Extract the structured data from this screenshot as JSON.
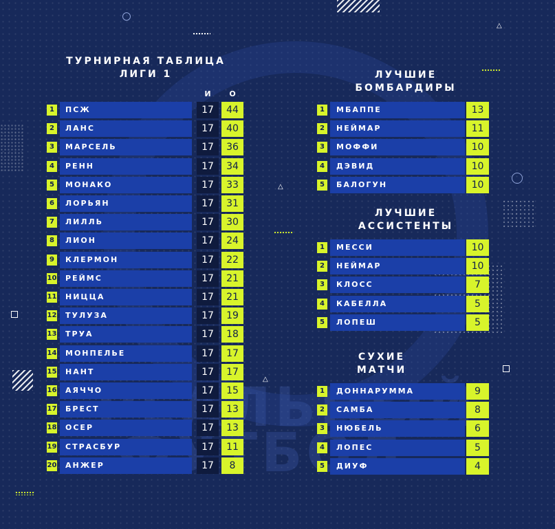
{
  "standings": {
    "title_line1": "ТУРНИРНАЯ ТАБЛИЦА",
    "title_line2": "ЛИГИ 1",
    "col_games": "И",
    "col_points": "О",
    "rows": [
      {
        "rank": "1",
        "team": "ПСЖ",
        "games": "17",
        "points": "44"
      },
      {
        "rank": "2",
        "team": "ЛАНС",
        "games": "17",
        "points": "40"
      },
      {
        "rank": "3",
        "team": "МАРСЕЛЬ",
        "games": "17",
        "points": "36"
      },
      {
        "rank": "4",
        "team": "РЕНН",
        "games": "17",
        "points": "34"
      },
      {
        "rank": "5",
        "team": "МОНАКО",
        "games": "17",
        "points": "33"
      },
      {
        "rank": "6",
        "team": "ЛОРЬЯН",
        "games": "17",
        "points": "31"
      },
      {
        "rank": "7",
        "team": "ЛИЛЛЬ",
        "games": "17",
        "points": "30"
      },
      {
        "rank": "8",
        "team": "ЛИОН",
        "games": "17",
        "points": "24"
      },
      {
        "rank": "9",
        "team": "КЛЕРМОН",
        "games": "17",
        "points": "22"
      },
      {
        "rank": "10",
        "team": "РЕЙМС",
        "games": "17",
        "points": "21"
      },
      {
        "rank": "11",
        "team": "НИЦЦА",
        "games": "17",
        "points": "21"
      },
      {
        "rank": "12",
        "team": "ТУЛУЗА",
        "games": "17",
        "points": "19"
      },
      {
        "rank": "13",
        "team": "ТРУА",
        "games": "17",
        "points": "18"
      },
      {
        "rank": "14",
        "team": "МОНПЕЛЬЕ",
        "games": "17",
        "points": "17"
      },
      {
        "rank": "15",
        "team": "НАНТ",
        "games": "17",
        "points": "17"
      },
      {
        "rank": "16",
        "team": "АЯЧЧО",
        "games": "17",
        "points": "15"
      },
      {
        "rank": "17",
        "team": "БРЕСТ",
        "games": "17",
        "points": "13"
      },
      {
        "rank": "18",
        "team": "ОСЕР",
        "games": "17",
        "points": "13"
      },
      {
        "rank": "19",
        "team": "СТРАСБУР",
        "games": "17",
        "points": "11"
      },
      {
        "rank": "20",
        "team": "АНЖЕР",
        "games": "17",
        "points": "8"
      }
    ]
  },
  "scorers": {
    "title_line1": "ЛУЧШИЕ",
    "title_line2": "БОМБАРДИРЫ",
    "rows": [
      {
        "rank": "1",
        "name": "МБАППЕ",
        "value": "13"
      },
      {
        "rank": "2",
        "name": "НЕЙМАР",
        "value": "11"
      },
      {
        "rank": "3",
        "name": "МОФФИ",
        "value": "10"
      },
      {
        "rank": "4",
        "name": "ДЭВИД",
        "value": "10"
      },
      {
        "rank": "5",
        "name": "БАЛОГУН",
        "value": "10"
      }
    ]
  },
  "assists": {
    "title_line1": "ЛУЧШИЕ",
    "title_line2": "АССИСТЕНТЫ",
    "rows": [
      {
        "rank": "1",
        "name": "МЕССИ",
        "value": "10"
      },
      {
        "rank": "2",
        "name": "НЕЙМАР",
        "value": "10"
      },
      {
        "rank": "3",
        "name": "КЛОСС",
        "value": "7"
      },
      {
        "rank": "4",
        "name": "КАБЕЛЛА",
        "value": "5"
      },
      {
        "rank": "5",
        "name": "ЛОПЕШ",
        "value": "5"
      }
    ]
  },
  "clean_sheets": {
    "title_line1": "СУХИЕ",
    "title_line2": "МАТЧИ",
    "rows": [
      {
        "rank": "1",
        "name": "ДОННАРУММА",
        "value": "9"
      },
      {
        "rank": "2",
        "name": "САМБА",
        "value": "8"
      },
      {
        "rank": "3",
        "name": "НЮБЕЛЬ",
        "value": "6"
      },
      {
        "rank": "4",
        "name": "ЛОПЕС",
        "value": "5"
      },
      {
        "rank": "5",
        "name": "ДИУФ",
        "value": "4"
      }
    ]
  },
  "watermark": {
    "line1": "РЕАЛЬНЫЙ",
    "line2": "ФУТБОЛ"
  },
  "colors": {
    "accent": "#d8f42b",
    "bar": "#1b3fa8",
    "background": "#17295a"
  }
}
